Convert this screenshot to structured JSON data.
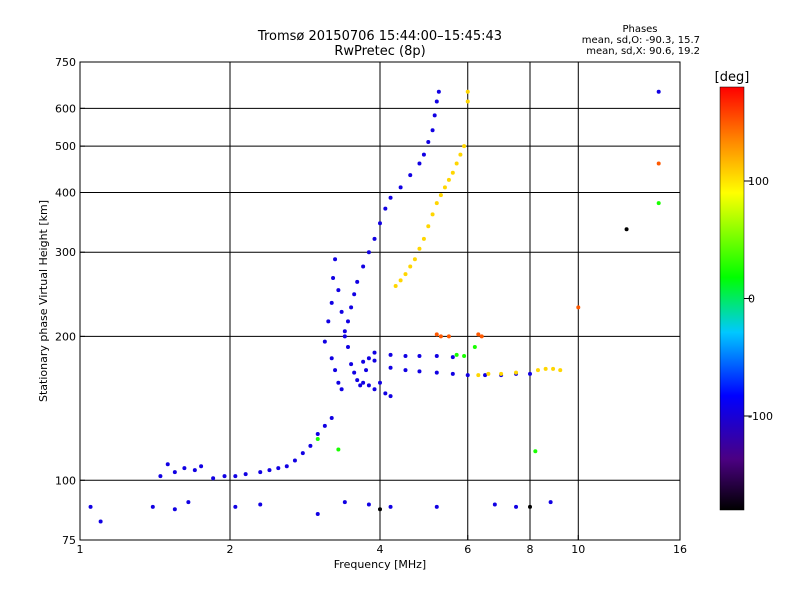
{
  "chart_data": {
    "type": "scatter",
    "title": "Tromsø 20150706 15:44:00–15:45:43",
    "subtitle": "RwPretec (8p)",
    "xlabel": "Frequency [MHz]",
    "ylabel": "Stationary phase Virtual Height [km]",
    "x_scale": "log",
    "y_scale": "log",
    "xlim": [
      1,
      16
    ],
    "ylim": [
      75,
      750
    ],
    "x_ticks": [
      1,
      2,
      4,
      6,
      8,
      10,
      16
    ],
    "y_ticks": [
      75,
      100,
      200,
      300,
      400,
      500,
      600,
      750
    ],
    "grid_x": [
      2,
      4,
      6,
      8,
      10
    ],
    "grid_y": [
      100,
      200,
      300,
      400,
      500,
      600
    ],
    "stats": {
      "heading": "Phases",
      "o_line": "mean, sd,O: -90.3, 15.7",
      "x_line": "mean, sd,X: 90.6, 19.2"
    },
    "colorbar": {
      "label": "[deg]",
      "ticks": [
        100,
        0,
        -100
      ],
      "range": [
        -180,
        180
      ]
    },
    "series": [
      {
        "color_value": -95,
        "points": [
          [
            1.45,
            102
          ],
          [
            1.5,
            108
          ],
          [
            1.55,
            104
          ],
          [
            1.62,
            106
          ],
          [
            1.7,
            105
          ],
          [
            1.75,
            107
          ],
          [
            1.85,
            101
          ],
          [
            1.95,
            102
          ],
          [
            2.05,
            102
          ],
          [
            2.15,
            103
          ],
          [
            2.3,
            104
          ],
          [
            2.4,
            105
          ],
          [
            2.5,
            106
          ],
          [
            2.6,
            107
          ],
          [
            2.7,
            110
          ],
          [
            2.8,
            114
          ],
          [
            2.9,
            118
          ],
          [
            3.0,
            125
          ],
          [
            3.1,
            130
          ],
          [
            3.2,
            135
          ],
          [
            3.1,
            195
          ],
          [
            3.15,
            215
          ],
          [
            3.2,
            235
          ],
          [
            3.22,
            265
          ],
          [
            3.25,
            290
          ],
          [
            3.3,
            250
          ],
          [
            3.35,
            225
          ],
          [
            3.4,
            205
          ],
          [
            3.45,
            190
          ],
          [
            3.5,
            175
          ],
          [
            3.55,
            168
          ],
          [
            3.6,
            162
          ],
          [
            3.65,
            158
          ],
          [
            3.7,
            160
          ],
          [
            3.75,
            170
          ],
          [
            3.8,
            180
          ],
          [
            3.2,
            180
          ],
          [
            3.25,
            170
          ],
          [
            3.3,
            160
          ],
          [
            3.35,
            155
          ],
          [
            3.4,
            200
          ],
          [
            3.45,
            215
          ],
          [
            3.5,
            230
          ],
          [
            3.55,
            245
          ],
          [
            3.6,
            260
          ],
          [
            3.7,
            280
          ],
          [
            3.8,
            300
          ],
          [
            3.9,
            320
          ],
          [
            4.0,
            345
          ],
          [
            4.1,
            370
          ],
          [
            4.2,
            390
          ],
          [
            4.4,
            410
          ],
          [
            4.6,
            435
          ],
          [
            4.8,
            460
          ],
          [
            4.9,
            480
          ],
          [
            5.0,
            510
          ],
          [
            5.1,
            540
          ],
          [
            5.15,
            580
          ],
          [
            5.2,
            620
          ],
          [
            5.25,
            650
          ],
          [
            4.0,
            160
          ],
          [
            4.1,
            152
          ],
          [
            4.2,
            150
          ],
          [
            3.9,
            155
          ],
          [
            3.8,
            158
          ],
          [
            3.7,
            177
          ],
          [
            3.9,
            178
          ],
          [
            4.2,
            172
          ],
          [
            4.5,
            170
          ],
          [
            4.8,
            169
          ],
          [
            5.2,
            168
          ],
          [
            5.6,
            167
          ],
          [
            6.0,
            166
          ],
          [
            6.5,
            166
          ],
          [
            7.0,
            166
          ],
          [
            7.5,
            167
          ],
          [
            8.0,
            167
          ],
          [
            3.9,
            185
          ],
          [
            4.2,
            183
          ],
          [
            4.5,
            182
          ],
          [
            4.8,
            182
          ],
          [
            5.2,
            182
          ],
          [
            5.6,
            181
          ],
          [
            1.05,
            88
          ],
          [
            1.1,
            82
          ],
          [
            1.4,
            88
          ],
          [
            1.55,
            87
          ],
          [
            1.65,
            90
          ],
          [
            2.05,
            88
          ],
          [
            2.3,
            89
          ],
          [
            3.0,
            85
          ],
          [
            3.4,
            90
          ],
          [
            3.8,
            89
          ],
          [
            4.2,
            88
          ],
          [
            5.2,
            88
          ],
          [
            6.8,
            89
          ],
          [
            7.5,
            88
          ],
          [
            8.8,
            90
          ],
          [
            14.5,
            650
          ]
        ]
      },
      {
        "color_value": 105,
        "points": [
          [
            4.3,
            255
          ],
          [
            4.4,
            262
          ],
          [
            4.5,
            270
          ],
          [
            4.6,
            280
          ],
          [
            4.7,
            290
          ],
          [
            4.8,
            305
          ],
          [
            4.9,
            320
          ],
          [
            5.0,
            340
          ],
          [
            5.1,
            360
          ],
          [
            5.2,
            380
          ],
          [
            5.3,
            395
          ],
          [
            5.4,
            410
          ],
          [
            5.5,
            425
          ],
          [
            5.6,
            440
          ],
          [
            5.7,
            460
          ],
          [
            5.8,
            480
          ],
          [
            5.9,
            500
          ],
          [
            6.0,
            620
          ],
          [
            6.0,
            650
          ],
          [
            6.3,
            166
          ],
          [
            6.6,
            167
          ],
          [
            7.0,
            167
          ],
          [
            7.5,
            168
          ],
          [
            8.3,
            170
          ],
          [
            8.6,
            171
          ],
          [
            8.9,
            171
          ],
          [
            9.2,
            170
          ]
        ]
      },
      {
        "color_value": 150,
        "points": [
          [
            5.2,
            202
          ],
          [
            5.3,
            200
          ],
          [
            5.5,
            200
          ],
          [
            6.3,
            202
          ],
          [
            6.4,
            200
          ],
          [
            10.0,
            230
          ],
          [
            14.5,
            460
          ]
        ]
      },
      {
        "color_value": 25,
        "points": [
          [
            3.0,
            122
          ],
          [
            3.3,
            116
          ],
          [
            5.7,
            183
          ],
          [
            5.9,
            182
          ],
          [
            6.2,
            190
          ],
          [
            8.2,
            115
          ],
          [
            14.5,
            380
          ]
        ]
      },
      {
        "color_value": -180,
        "points": [
          [
            4.0,
            87
          ],
          [
            8.0,
            88
          ],
          [
            12.5,
            335
          ]
        ]
      }
    ]
  }
}
